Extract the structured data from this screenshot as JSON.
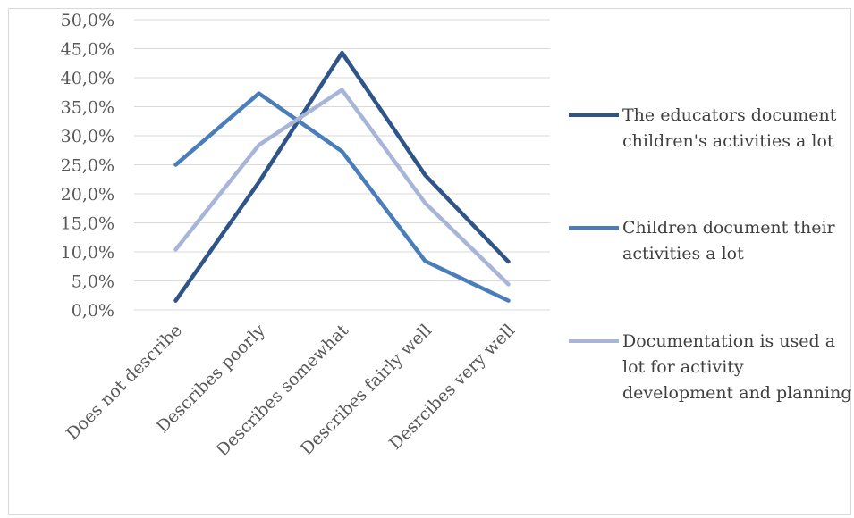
{
  "chart_data": {
    "type": "line",
    "categories": [
      "Does not describe",
      "Describes poorly",
      "Describes somewhat",
      "Describes fairly well",
      "Desrcibes very well"
    ],
    "y_ticks": [
      "0,0%",
      "5,0%",
      "10,0%",
      "15,0%",
      "20,0%",
      "25,0%",
      "30,0%",
      "35,0%",
      "40,0%",
      "45,0%",
      "50,0%"
    ],
    "ylim": [
      0,
      50
    ],
    "grid": true,
    "legend_position": "right",
    "series": [
      {
        "name": "The educators document children's activities a lot",
        "color": "#2f5588",
        "values": [
          1.6,
          22.0,
          44.3,
          23.2,
          8.3
        ]
      },
      {
        "name": "Children document their activities a lot",
        "color": "#4a7ebb",
        "values": [
          25.0,
          37.3,
          27.3,
          8.4,
          1.6
        ]
      },
      {
        "name": "Documentation is used a lot for activity development and planning",
        "color": "#a7b6d8",
        "values": [
          10.4,
          28.4,
          37.9,
          18.4,
          4.4
        ]
      }
    ]
  }
}
